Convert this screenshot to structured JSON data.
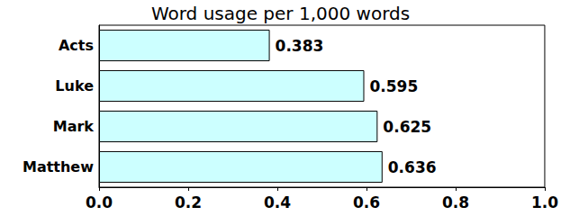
{
  "chart_data": {
    "type": "bar",
    "title": "Word usage per 1,000 words",
    "orientation": "horizontal",
    "categories": [
      "Acts",
      "Luke",
      "Mark",
      "Matthew"
    ],
    "values": [
      0.383,
      0.595,
      0.625,
      0.636
    ],
    "color": "#ccffff",
    "xlim": [
      0,
      1
    ],
    "xticks": [
      {
        "value": 0,
        "label": "0.0"
      },
      0.2,
      0.4,
      0.6,
      0.8,
      {
        "value": 1,
        "label": "1.0"
      }
    ],
    "grid": false,
    "data_labels": true
  }
}
